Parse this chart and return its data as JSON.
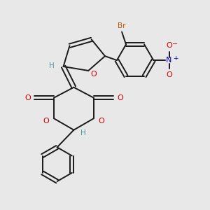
{
  "bg_color": "#e8e8e8",
  "bond_color": "#1a1a1a",
  "O_color": "#cc0000",
  "N_color": "#0000cc",
  "Br_color": "#bb5500",
  "H_color": "#4d9999",
  "figsize": [
    3.0,
    3.0
  ],
  "dpi": 100,
  "xlim": [
    0,
    10
  ],
  "ylim": [
    0,
    10
  ]
}
